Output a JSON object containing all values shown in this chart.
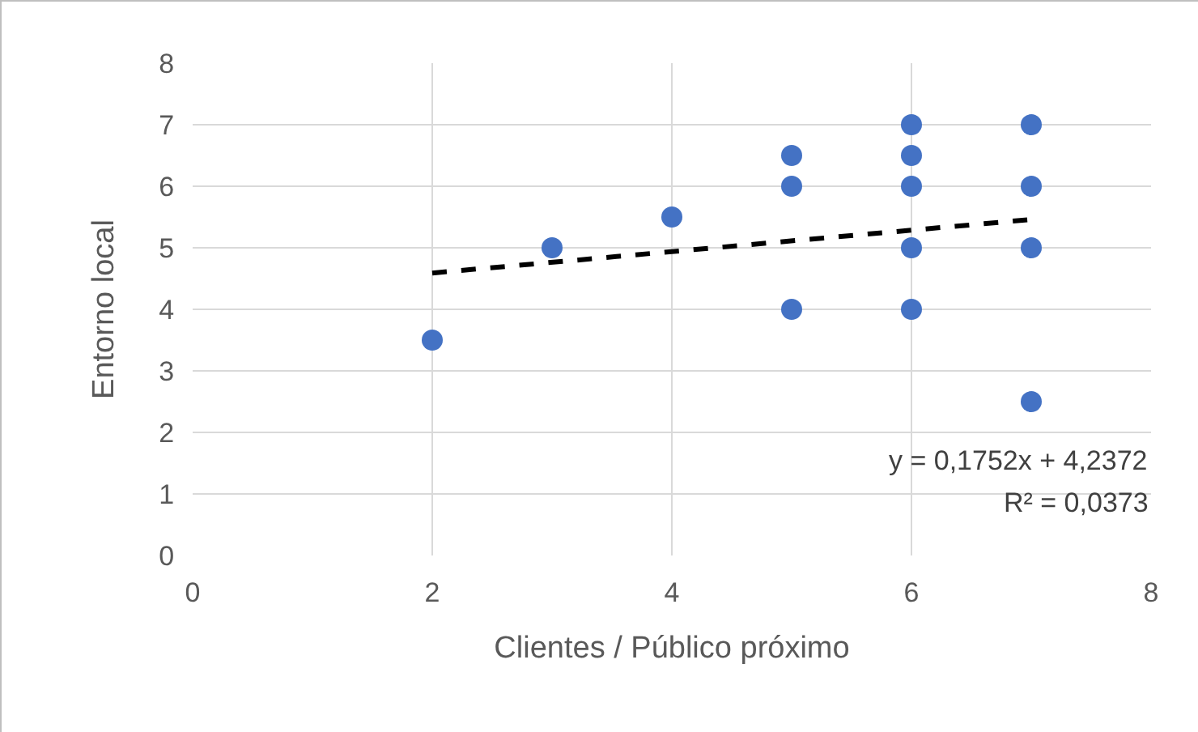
{
  "chart_data": {
    "type": "scatter",
    "xlabel": "Clientes / Público próximo",
    "ylabel": "Entorno local",
    "xlim": [
      0,
      8
    ],
    "xticks": [
      0,
      2,
      4,
      6,
      8
    ],
    "ylim": [
      0,
      8
    ],
    "yticks": [
      0,
      1,
      2,
      3,
      4,
      5,
      6,
      7,
      8
    ],
    "grid": true,
    "series": [
      {
        "color": "#4472c4",
        "marker": "circle",
        "x": [
          2,
          3,
          4,
          5,
          5,
          5,
          6,
          6,
          6,
          6,
          6,
          7,
          7,
          7,
          7
        ],
        "values": [
          3.5,
          5,
          5.5,
          4,
          6,
          6.5,
          4,
          5,
          6,
          6.5,
          7,
          2.5,
          5,
          6,
          7
        ]
      },
      {
        "type": "line",
        "color": "#000000",
        "marker": "none",
        "line_style": "dashed",
        "x": [
          2,
          7
        ],
        "values": [
          4.59,
          5.46
        ]
      }
    ],
    "annotations": [
      "y = 0,1752x + 4,2372",
      "R² = 0,0373"
    ]
  }
}
